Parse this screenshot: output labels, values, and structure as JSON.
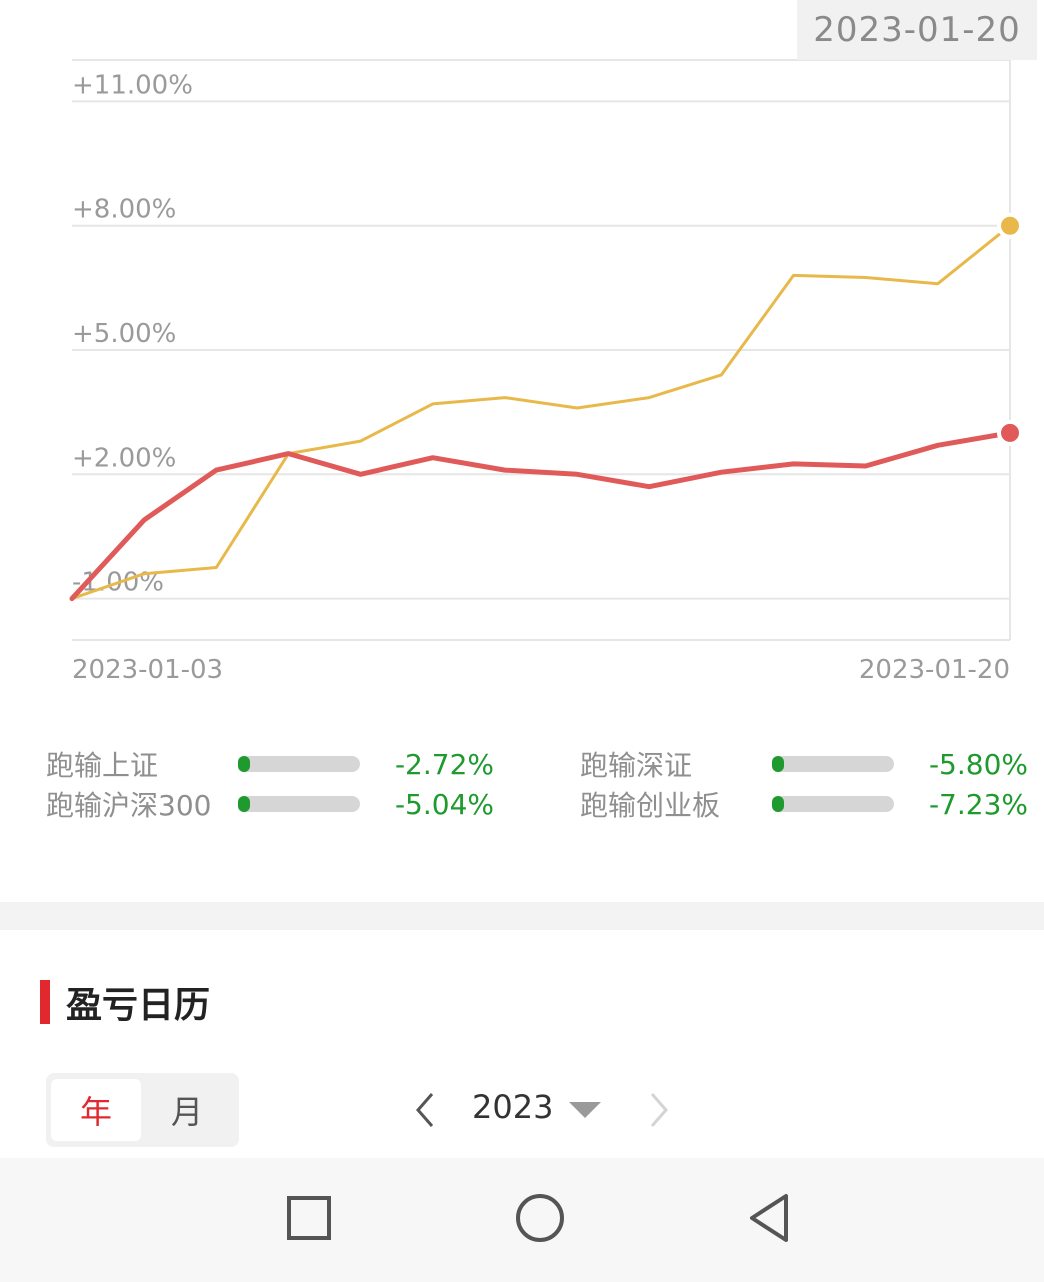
{
  "selected_date": "2023-01-20",
  "chart_data": {
    "type": "line",
    "x": [
      "2023-01-03",
      "2023-01-04",
      "2023-01-05",
      "2023-01-06",
      "2023-01-09",
      "2023-01-10",
      "2023-01-11",
      "2023-01-12",
      "2023-01-13",
      "2023-01-16",
      "2023-01-17",
      "2023-01-18",
      "2023-01-19",
      "2023-01-20"
    ],
    "x_tick_labels": [
      "2023-01-03",
      "2023-01-20"
    ],
    "y_tick_labels": [
      "+11.00%",
      "+8.00%",
      "+5.00%",
      "+2.00%",
      "-1.00%"
    ],
    "y_ticks": [
      11,
      8,
      5,
      2,
      -1
    ],
    "ylim": [
      -2,
      12
    ],
    "series": [
      {
        "color": "#e8b94a",
        "values": [
          -1.0,
          -0.4,
          -0.25,
          2.5,
          2.8,
          3.7,
          3.85,
          3.6,
          3.85,
          4.4,
          6.8,
          6.75,
          6.6,
          8.0
        ]
      },
      {
        "color": "#e05a5a",
        "values": [
          -1.0,
          0.9,
          2.1,
          2.5,
          2.0,
          2.4,
          2.1,
          2.0,
          1.7,
          2.05,
          2.25,
          2.2,
          2.7,
          3.0
        ]
      }
    ],
    "grid": true
  },
  "comparison": [
    {
      "label": "跑输上证",
      "value": "-2.72%"
    },
    {
      "label": "跑输深证",
      "value": "-5.80%"
    },
    {
      "label": "跑输沪深300",
      "value": "-5.04%"
    },
    {
      "label": "跑输创业板",
      "value": "-7.23%"
    }
  ],
  "calendar": {
    "title": "盈亏日历",
    "tabs": [
      "年",
      "月"
    ],
    "active_tab": "年",
    "year": "2023"
  },
  "colors": {
    "accent": "#e0282e",
    "negative": "#1e9a2e"
  },
  "icons": {
    "prev": "chevron-left-icon",
    "next": "chevron-right-icon",
    "dropdown": "caret-down-icon",
    "recent": "square-icon",
    "home": "circle-icon",
    "back": "triangle-back-icon"
  }
}
